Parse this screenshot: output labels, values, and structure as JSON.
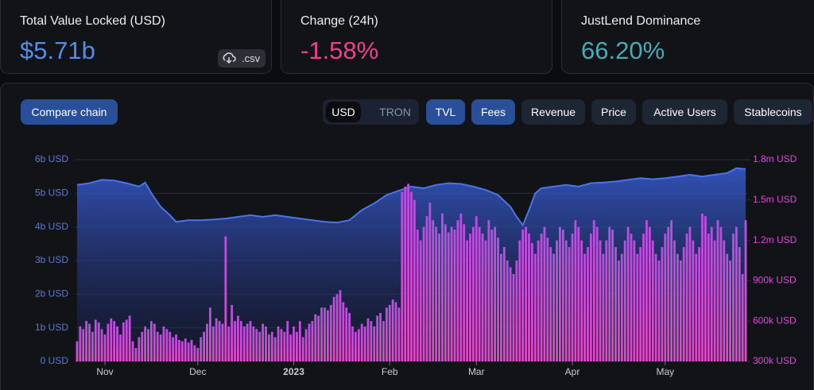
{
  "cards": [
    {
      "label": "Total Value Locked (USD)",
      "value": "$5.71b"
    },
    {
      "label": "Change (24h)",
      "value": "-1.58%"
    },
    {
      "label": "JustLend Dominance",
      "value": "66.20%"
    }
  ],
  "csv_button": ".csv",
  "controls": {
    "compare": "Compare chain",
    "currency": [
      "USD",
      "TRON"
    ],
    "metrics": [
      "Revenue",
      "Price",
      "Active Users",
      "Stablecoins"
    ]
  },
  "chart_data": {
    "type": "combo",
    "xlim": [
      -0.5,
      216.5
    ],
    "xticks": [
      {
        "value": 9,
        "label": "Nov"
      },
      {
        "value": 39,
        "label": "Dec"
      },
      {
        "value": 70,
        "label": "2023"
      },
      {
        "value": 101,
        "label": "Feb"
      },
      {
        "value": 129,
        "label": "Mar"
      },
      {
        "value": 160,
        "label": "Apr"
      },
      {
        "value": 190,
        "label": "May"
      }
    ],
    "ylim": [
      0,
      6000000000
    ],
    "yticks": [
      {
        "value": 0,
        "label": "0 USD"
      },
      {
        "value": 1000000000,
        "label": "1b USD"
      },
      {
        "value": 2000000000,
        "label": "2b USD"
      },
      {
        "value": 3000000000,
        "label": "3b USD"
      },
      {
        "value": 4000000000,
        "label": "4b USD"
      },
      {
        "value": 5000000000,
        "label": "5b USD"
      },
      {
        "value": 6000000000,
        "label": "6b USD"
      }
    ],
    "y2lim": [
      300000,
      1800000
    ],
    "y2ticks": [
      {
        "value": 300000,
        "label": "300k USD"
      },
      {
        "value": 600000,
        "label": "600k USD"
      },
      {
        "value": 900000,
        "label": "900k USD"
      },
      {
        "value": 1200000,
        "label": "1.2m USD"
      },
      {
        "value": 1500000,
        "label": "1.5m USD"
      },
      {
        "value": 1800000,
        "label": "1.8m USD"
      }
    ],
    "grid": true,
    "series": [
      {
        "name": "TVL",
        "type": "area",
        "color": "#4a74e8",
        "x": [
          0,
          4,
          8,
          12,
          16,
          20,
          22,
          24,
          27,
          30,
          32,
          36,
          40,
          44,
          48,
          52,
          56,
          60,
          64,
          68,
          72,
          76,
          80,
          84,
          88,
          92,
          96,
          100,
          104,
          108,
          112,
          116,
          120,
          124,
          128,
          132,
          136,
          140,
          142,
          144,
          146,
          148,
          150,
          154,
          158,
          162,
          166,
          170,
          174,
          178,
          182,
          186,
          190,
          194,
          198,
          202,
          206,
          210,
          213,
          216
        ],
        "values": [
          5250000000,
          5300000000,
          5400000000,
          5380000000,
          5300000000,
          5200000000,
          5320000000,
          5000000000,
          4600000000,
          4350000000,
          4150000000,
          4200000000,
          4200000000,
          4220000000,
          4250000000,
          4300000000,
          4350000000,
          4300000000,
          4350000000,
          4300000000,
          4250000000,
          4200000000,
          4150000000,
          4130000000,
          4200000000,
          4500000000,
          4700000000,
          4950000000,
          5080000000,
          5200000000,
          5150000000,
          5250000000,
          5300000000,
          5280000000,
          5200000000,
          5100000000,
          4950000000,
          4600000000,
          4300000000,
          4050000000,
          4500000000,
          5000000000,
          5150000000,
          5200000000,
          5250000000,
          5200000000,
          5300000000,
          5320000000,
          5350000000,
          5400000000,
          5450000000,
          5420000000,
          5450000000,
          5500000000,
          5550000000,
          5500000000,
          5550000000,
          5600000000,
          5750000000,
          5720000000
        ]
      },
      {
        "name": "Fees",
        "type": "bar",
        "axis": "y2",
        "color": "#d64ad8",
        "x": [
          0,
          1,
          2,
          3,
          4,
          5,
          6,
          7,
          8,
          9,
          10,
          11,
          12,
          13,
          14,
          15,
          16,
          17,
          18,
          19,
          20,
          21,
          22,
          23,
          24,
          25,
          26,
          27,
          28,
          29,
          30,
          31,
          32,
          33,
          34,
          35,
          36,
          37,
          38,
          39,
          40,
          41,
          42,
          43,
          44,
          45,
          46,
          47,
          48,
          49,
          50,
          51,
          52,
          53,
          54,
          55,
          56,
          57,
          58,
          59,
          60,
          61,
          62,
          63,
          64,
          65,
          66,
          67,
          68,
          69,
          70,
          71,
          72,
          73,
          74,
          75,
          76,
          77,
          78,
          79,
          80,
          81,
          82,
          83,
          84,
          85,
          86,
          87,
          88,
          89,
          90,
          91,
          92,
          93,
          94,
          95,
          96,
          97,
          98,
          99,
          100,
          101,
          102,
          103,
          104,
          105,
          106,
          107,
          108,
          109,
          110,
          111,
          112,
          113,
          114,
          115,
          116,
          117,
          118,
          119,
          120,
          121,
          122,
          123,
          124,
          125,
          126,
          127,
          128,
          129,
          130,
          131,
          132,
          133,
          134,
          135,
          136,
          137,
          138,
          139,
          140,
          141,
          142,
          143,
          144,
          145,
          146,
          147,
          148,
          149,
          150,
          151,
          152,
          153,
          154,
          155,
          156,
          157,
          158,
          159,
          160,
          161,
          162,
          163,
          164,
          165,
          166,
          167,
          168,
          169,
          170,
          171,
          172,
          173,
          174,
          175,
          176,
          177,
          178,
          179,
          180,
          181,
          182,
          183,
          184,
          185,
          186,
          187,
          188,
          189,
          190,
          191,
          192,
          193,
          194,
          195,
          196,
          197,
          198,
          199,
          200,
          201,
          202,
          203,
          204,
          205,
          206,
          207,
          208,
          209,
          210,
          211,
          212,
          213,
          214,
          215,
          216
        ],
        "values": [
          450000,
          560000,
          540000,
          600000,
          580000,
          520000,
          610000,
          590000,
          540000,
          500000,
          580000,
          620000,
          600000,
          560000,
          500000,
          590000,
          610000,
          640000,
          450000,
          400000,
          480000,
          520000,
          560000,
          540000,
          600000,
          580000,
          520000,
          500000,
          560000,
          540000,
          520000,
          480000,
          500000,
          460000,
          450000,
          470000,
          440000,
          460000,
          420000,
          400000,
          480000,
          520000,
          580000,
          700000,
          560000,
          620000,
          600000,
          580000,
          1230000,
          560000,
          720000,
          600000,
          640000,
          600000,
          560000,
          580000,
          600000,
          560000,
          540000,
          520000,
          580000,
          560000,
          500000,
          520000,
          480000,
          560000,
          540000,
          520000,
          600000,
          500000,
          560000,
          520000,
          600000,
          480000,
          540000,
          580000,
          600000,
          650000,
          640000,
          700000,
          700000,
          680000,
          720000,
          780000,
          800000,
          830000,
          740000,
          700000,
          660000,
          560000,
          520000,
          540000,
          580000,
          560000,
          620000,
          600000,
          560000,
          640000,
          660000,
          600000,
          700000,
          720000,
          760000,
          740000,
          700000,
          1560000,
          1600000,
          1620000,
          1560000,
          1500000,
          1280000,
          1200000,
          1300000,
          1380000,
          1480000,
          1350000,
          1300000,
          1250000,
          1400000,
          1320000,
          1260000,
          1300000,
          1280000,
          1350000,
          1400000,
          1320000,
          1200000,
          1250000,
          1300000,
          1380000,
          1300000,
          1250000,
          1200000,
          1350000,
          1280000,
          1300000,
          1220000,
          1100000,
          1150000,
          1050000,
          1000000,
          950000,
          1050000,
          1200000,
          1280000,
          1300000,
          1250000,
          1180000,
          1100000,
          1200000,
          1250000,
          1300000,
          1220000,
          1150000,
          1100000,
          1200000,
          1300000,
          1280000,
          1200000,
          1150000,
          1250000,
          1350000,
          1300000,
          1200000,
          1100000,
          1150000,
          1250000,
          1350000,
          1300000,
          1200000,
          1100000,
          1200000,
          1300000,
          1280000,
          1150000,
          1050000,
          1100000,
          1200000,
          1300000,
          1250000,
          1200000,
          1100000,
          1150000,
          1250000,
          1350000,
          1300000,
          1200000,
          1100000,
          1050000,
          1150000,
          1250000,
          1300000,
          1350000,
          1200000,
          1100000,
          1050000,
          1150000,
          1250000,
          1300000,
          1200000,
          1100000,
          1150000,
          1400000,
          1380000,
          1250000,
          1300000,
          1200000,
          1350000,
          1300000,
          1200000,
          1100000,
          1050000,
          1250000,
          1300000,
          1150000,
          950000,
          1350000
        ]
      }
    ]
  }
}
